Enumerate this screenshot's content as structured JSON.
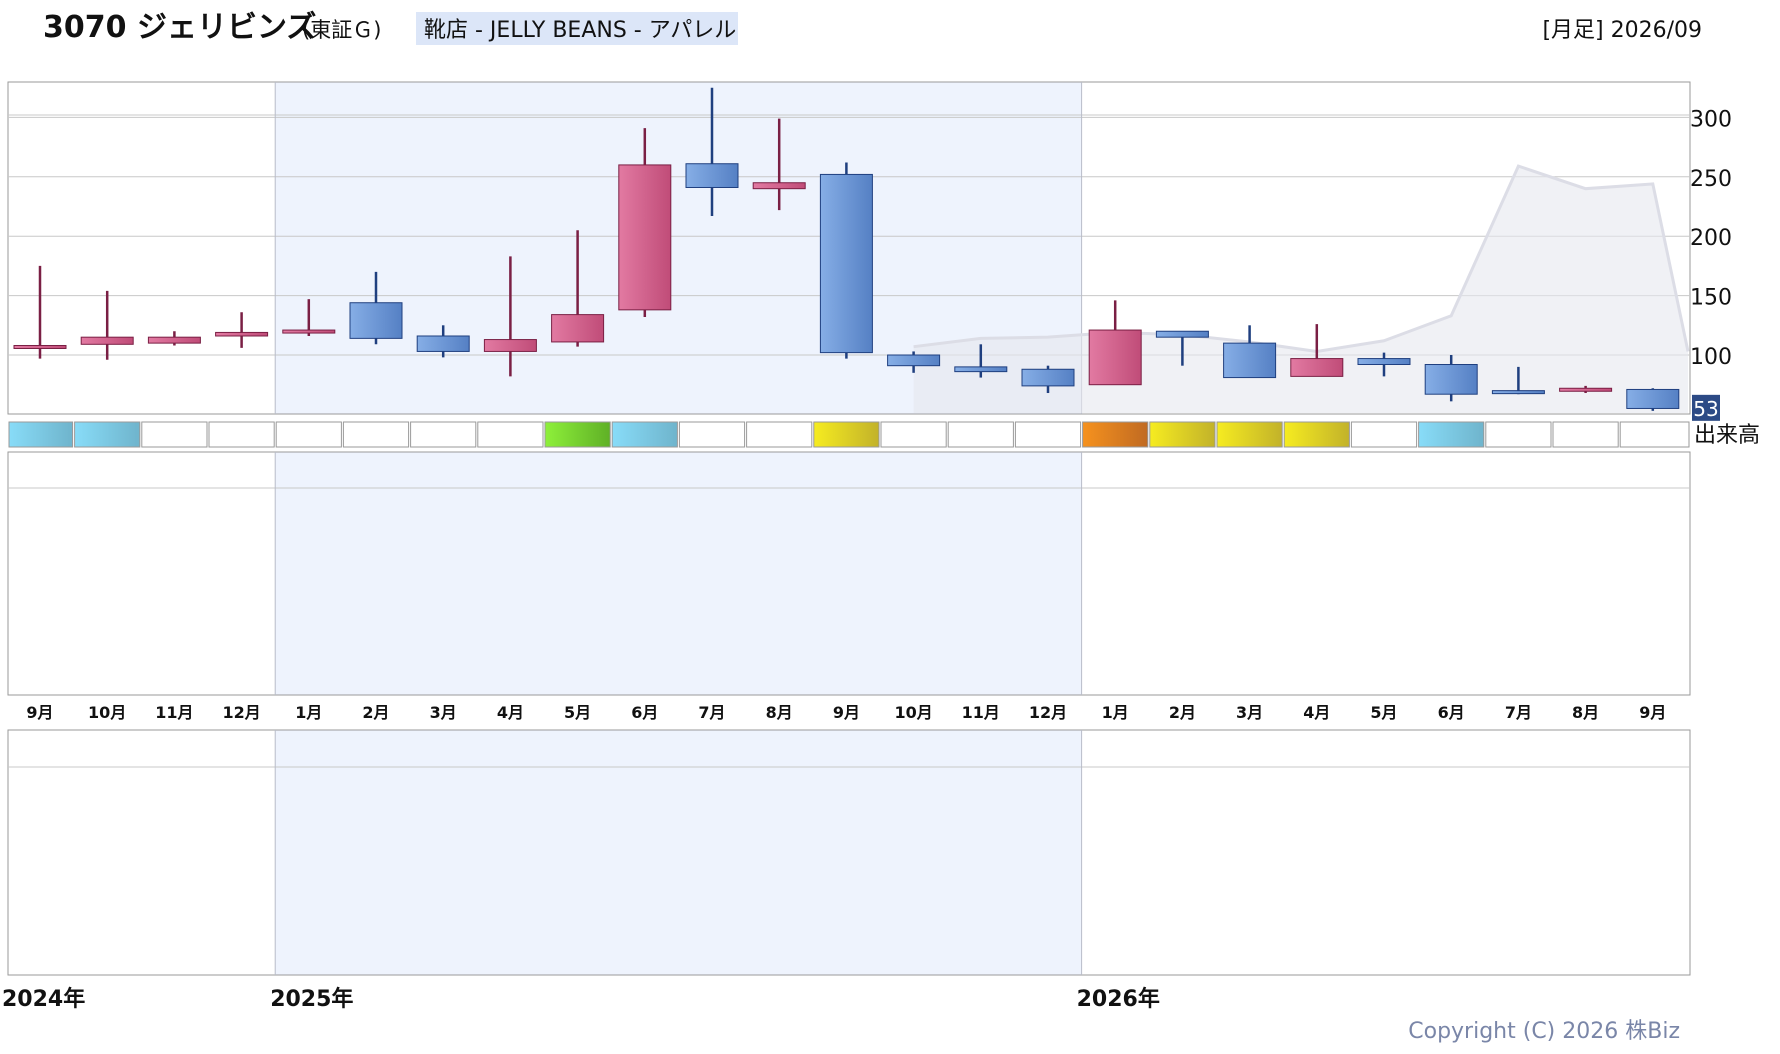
{
  "header": {
    "code_name": "3070 ジェリビンズ",
    "market": "(東証Ｇ)",
    "sector": "靴店 - JELLY BEANS - アパレル",
    "period": "[月足] 2026/09"
  },
  "copyright": "Copyright (C) 2026 株Biz",
  "volume_label": "出来高",
  "colors": {
    "up_fill": "#d9628f",
    "up_edge": "#7a1f44",
    "down_fill": "#6f98d8",
    "down_edge": "#1f3f7f",
    "band_shade": "#eef3fd",
    "grid": "#c8c8c8",
    "moving_avg": "#dcdde6",
    "last_badge": "#2c4a85"
  },
  "chart_data": {
    "type": "candlestick",
    "ylim": [
      53,
      325
    ],
    "yticks": [
      "100",
      "150",
      "200",
      "250",
      "300"
    ],
    "last_value": "53",
    "months": [
      "9月",
      "10月",
      "11月",
      "12月",
      "1月",
      "2月",
      "3月",
      "4月",
      "5月",
      "6月",
      "7月",
      "8月",
      "9月",
      "10月",
      "11月",
      "12月",
      "1月",
      "2月",
      "3月",
      "4月",
      "5月",
      "6月",
      "7月",
      "8月",
      "9月"
    ],
    "years": [
      {
        "label": "2024年",
        "start_index": 0
      },
      {
        "label": "2025年",
        "start_index": 4
      },
      {
        "label": "2026年",
        "start_index": 16
      }
    ],
    "shaded_year_range": [
      4,
      15
    ],
    "candles": [
      {
        "o": 107,
        "c": 108,
        "h": 175,
        "l": 97
      },
      {
        "o": 109,
        "c": 115,
        "h": 154,
        "l": 96
      },
      {
        "o": 110,
        "c": 115,
        "h": 120,
        "l": 108
      },
      {
        "o": 116,
        "c": 119,
        "h": 136,
        "l": 106
      },
      {
        "o": 119,
        "c": 121,
        "h": 147,
        "l": 116
      },
      {
        "o": 144,
        "c": 114,
        "h": 170,
        "l": 109
      },
      {
        "o": 116,
        "c": 103,
        "h": 125,
        "l": 98
      },
      {
        "o": 103,
        "c": 113,
        "h": 183,
        "l": 82
      },
      {
        "o": 111,
        "c": 134,
        "h": 205,
        "l": 107
      },
      {
        "o": 138,
        "c": 260,
        "h": 291,
        "l": 132
      },
      {
        "o": 261,
        "c": 241,
        "h": 325,
        "l": 217
      },
      {
        "o": 240,
        "c": 245,
        "h": 299,
        "l": 222
      },
      {
        "o": 252,
        "c": 102,
        "h": 262,
        "l": 97
      },
      {
        "o": 100,
        "c": 91,
        "h": 103,
        "l": 85
      },
      {
        "o": 90,
        "c": 86,
        "h": 109,
        "l": 81
      },
      {
        "o": 88,
        "c": 74,
        "h": 91,
        "l": 68
      },
      {
        "o": 75,
        "c": 121,
        "h": 146,
        "l": 75
      },
      {
        "o": 120,
        "c": 115,
        "h": 120,
        "l": 91
      },
      {
        "o": 110,
        "c": 81,
        "h": 125,
        "l": 81
      },
      {
        "o": 82,
        "c": 97,
        "h": 126,
        "l": 82
      },
      {
        "o": 97,
        "c": 92,
        "h": 102,
        "l": 82
      },
      {
        "o": 92,
        "c": 67,
        "h": 100,
        "l": 61
      },
      {
        "o": 70,
        "c": 68,
        "h": 90,
        "l": 67
      },
      {
        "o": 71,
        "c": 72,
        "h": 74,
        "l": 68
      },
      {
        "o": 71,
        "c": 55,
        "h": 72,
        "l": 53
      }
    ],
    "moving_average": [
      null,
      null,
      null,
      null,
      null,
      null,
      null,
      null,
      null,
      null,
      null,
      null,
      null,
      107,
      114,
      115,
      119,
      117,
      111,
      103,
      112,
      133,
      259,
      240,
      244
    ],
    "moving_average_tail": 103,
    "signal_row": [
      "cyan",
      "cyan",
      "none",
      "none",
      "none",
      "none",
      "none",
      "none",
      "green",
      "cyan",
      "none",
      "none",
      "yellow",
      "none",
      "none",
      "none",
      "orange",
      "yellow",
      "yellow",
      "yellow",
      "none",
      "cyan",
      "none",
      "none",
      "none"
    ]
  }
}
